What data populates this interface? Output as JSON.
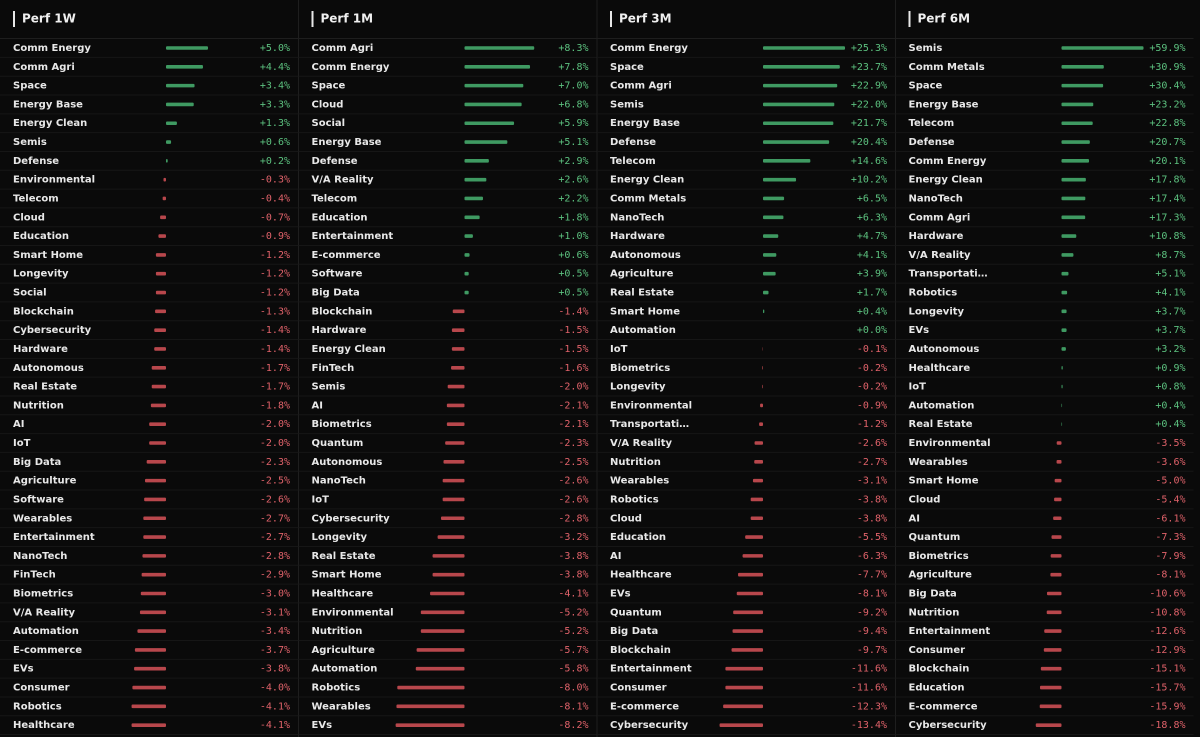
{
  "panels": [
    {
      "title": "Perf 1W",
      "names": [
        "Comm Energy",
        "Comm Agri",
        "Space",
        "Energy Base",
        "Energy Clean",
        "Semis",
        "Defense",
        "Environmental",
        "Telecom",
        "Cloud",
        "Education",
        "Smart Home",
        "Longevity",
        "Social",
        "Blockchain",
        "Cybersecurity",
        "Hardware",
        "Autonomous",
        "Real Estate",
        "Nutrition",
        "AI",
        "IoT",
        "Big Data",
        "Agriculture",
        "Software",
        "Wearables",
        "Entertainment",
        "NanoTech",
        "FinTech",
        "Biometrics",
        "V/A Reality",
        "Automation",
        "E-commerce",
        "EVs",
        "Consumer",
        "Robotics",
        "Healthcare"
      ],
      "values": [
        5.0,
        4.4,
        3.4,
        3.3,
        1.3,
        0.6,
        0.2,
        -0.3,
        -0.4,
        -0.7,
        -0.9,
        -1.2,
        -1.2,
        -1.2,
        -1.3,
        -1.4,
        -1.4,
        -1.7,
        -1.7,
        -1.8,
        -2.0,
        -2.0,
        -2.3,
        -2.5,
        -2.6,
        -2.7,
        -2.7,
        -2.8,
        -2.9,
        -3.0,
        -3.1,
        -3.4,
        -3.7,
        -3.8,
        -4.0,
        -4.1,
        -4.1
      ],
      "value_labels": [
        "+5.0%",
        "+4.4%",
        "+3.4%",
        "+3.3%",
        "+1.3%",
        "+0.6%",
        "+0.2%",
        "-0.3%",
        "-0.4%",
        "-0.7%",
        "-0.9%",
        "-1.2%",
        "-1.2%",
        "-1.2%",
        "-1.3%",
        "-1.4%",
        "-1.4%",
        "-1.7%",
        "-1.7%",
        "-1.8%",
        "-2.0%",
        "-2.0%",
        "-2.3%",
        "-2.5%",
        "-2.6%",
        "-2.7%",
        "-2.7%",
        "-2.8%",
        "-2.9%",
        "-3.0%",
        "-3.1%",
        "-3.4%",
        "-3.7%",
        "-3.8%",
        "-4.0%",
        "-4.1%",
        "-4.1%"
      ]
    },
    {
      "title": "Perf 1M",
      "names": [
        "Comm Agri",
        "Comm Energy",
        "Space",
        "Cloud",
        "Social",
        "Energy Base",
        "Defense",
        "V/A Reality",
        "Telecom",
        "Education",
        "Entertainment",
        "E-commerce",
        "Software",
        "Big Data",
        "Blockchain",
        "Hardware",
        "Energy Clean",
        "FinTech",
        "Semis",
        "AI",
        "Biometrics",
        "Quantum",
        "Autonomous",
        "NanoTech",
        "IoT",
        "Cybersecurity",
        "Longevity",
        "Real Estate",
        "Smart Home",
        "Healthcare",
        "Environmental",
        "Nutrition",
        "Agriculture",
        "Automation",
        "Robotics",
        "Wearables",
        "EVs"
      ],
      "values": [
        8.3,
        7.8,
        7.0,
        6.8,
        5.9,
        5.1,
        2.9,
        2.6,
        2.2,
        1.8,
        1.0,
        0.6,
        0.5,
        0.5,
        -1.4,
        -1.5,
        -1.5,
        -1.6,
        -2.0,
        -2.1,
        -2.1,
        -2.3,
        -2.5,
        -2.6,
        -2.6,
        -2.8,
        -3.2,
        -3.8,
        -3.8,
        -4.1,
        -5.2,
        -5.2,
        -5.7,
        -5.8,
        -8.0,
        -8.1,
        -8.2
      ],
      "value_labels": [
        "+8.3%",
        "+7.8%",
        "+7.0%",
        "+6.8%",
        "+5.9%",
        "+5.1%",
        "+2.9%",
        "+2.6%",
        "+2.2%",
        "+1.8%",
        "+1.0%",
        "+0.6%",
        "+0.5%",
        "+0.5%",
        "-1.4%",
        "-1.5%",
        "-1.5%",
        "-1.6%",
        "-2.0%",
        "-2.1%",
        "-2.1%",
        "-2.3%",
        "-2.5%",
        "-2.6%",
        "-2.6%",
        "-2.8%",
        "-3.2%",
        "-3.8%",
        "-3.8%",
        "-4.1%",
        "-5.2%",
        "-5.2%",
        "-5.7%",
        "-5.8%",
        "-8.0%",
        "-8.1%",
        "-8.2%"
      ]
    },
    {
      "title": "Perf 3M",
      "names": [
        "Comm Energy",
        "Space",
        "Comm Agri",
        "Semis",
        "Energy Base",
        "Defense",
        "Telecom",
        "Energy Clean",
        "Comm Metals",
        "NanoTech",
        "Hardware",
        "Autonomous",
        "Agriculture",
        "Real Estate",
        "Smart Home",
        "Automation",
        "IoT",
        "Biometrics",
        "Longevity",
        "Environmental",
        "Transportati…",
        "V/A Reality",
        "Nutrition",
        "Wearables",
        "Robotics",
        "Cloud",
        "Education",
        "AI",
        "Healthcare",
        "EVs",
        "Quantum",
        "Big Data",
        "Blockchain",
        "Entertainment",
        "Consumer",
        "E-commerce",
        "Cybersecurity"
      ],
      "values": [
        25.3,
        23.7,
        22.9,
        22.0,
        21.7,
        20.4,
        14.6,
        10.2,
        6.5,
        6.3,
        4.7,
        4.1,
        3.9,
        1.7,
        0.4,
        0.0,
        -0.1,
        -0.2,
        -0.2,
        -0.9,
        -1.2,
        -2.6,
        -2.7,
        -3.1,
        -3.8,
        -3.8,
        -5.5,
        -6.3,
        -7.7,
        -8.1,
        -9.2,
        -9.4,
        -9.7,
        -11.6,
        -11.6,
        -12.3,
        -13.4
      ],
      "value_labels": [
        "+25.3%",
        "+23.7%",
        "+22.9%",
        "+22.0%",
        "+21.7%",
        "+20.4%",
        "+14.6%",
        "+10.2%",
        "+6.5%",
        "+6.3%",
        "+4.7%",
        "+4.1%",
        "+3.9%",
        "+1.7%",
        "+0.4%",
        "+0.0%",
        "-0.1%",
        "-0.2%",
        "-0.2%",
        "-0.9%",
        "-1.2%",
        "-2.6%",
        "-2.7%",
        "-3.1%",
        "-3.8%",
        "-3.8%",
        "-5.5%",
        "-6.3%",
        "-7.7%",
        "-8.1%",
        "-9.2%",
        "-9.4%",
        "-9.7%",
        "-11.6%",
        "-11.6%",
        "-12.3%",
        "-13.4%"
      ]
    },
    {
      "title": "Perf 6M",
      "names": [
        "Semis",
        "Comm Metals",
        "Space",
        "Energy Base",
        "Telecom",
        "Defense",
        "Comm Energy",
        "Energy Clean",
        "NanoTech",
        "Comm Agri",
        "Hardware",
        "V/A Reality",
        "Transportati…",
        "Robotics",
        "Longevity",
        "EVs",
        "Autonomous",
        "Healthcare",
        "IoT",
        "Automation",
        "Real Estate",
        "Environmental",
        "Wearables",
        "Smart Home",
        "Cloud",
        "AI",
        "Quantum",
        "Biometrics",
        "Agriculture",
        "Big Data",
        "Nutrition",
        "Entertainment",
        "Consumer",
        "Blockchain",
        "Education",
        "E-commerce",
        "Cybersecurity"
      ],
      "values": [
        59.9,
        30.9,
        30.4,
        23.2,
        22.8,
        20.7,
        20.1,
        17.8,
        17.4,
        17.3,
        10.8,
        8.7,
        5.1,
        4.1,
        3.7,
        3.7,
        3.2,
        0.9,
        0.8,
        0.4,
        0.4,
        -3.5,
        -3.6,
        -5.0,
        -5.4,
        -6.1,
        -7.3,
        -7.9,
        -8.1,
        -10.6,
        -10.8,
        -12.6,
        -12.9,
        -15.1,
        -15.7,
        -15.9,
        -18.8
      ],
      "value_labels": [
        "+59.9%",
        "+30.9%",
        "+30.4%",
        "+23.2%",
        "+22.8%",
        "+20.7%",
        "+20.1%",
        "+17.8%",
        "+17.4%",
        "+17.3%",
        "+10.8%",
        "+8.7%",
        "+5.1%",
        "+4.1%",
        "+3.7%",
        "+3.7%",
        "+3.2%",
        "+0.9%",
        "+0.8%",
        "+0.4%",
        "+0.4%",
        "-3.5%",
        "-3.6%",
        "-5.0%",
        "-5.4%",
        "-6.1%",
        "-7.3%",
        "-7.9%",
        "-8.1%",
        "-10.6%",
        "-10.8%",
        "-12.6%",
        "-12.9%",
        "-15.1%",
        "-15.7%",
        "-15.9%",
        "-18.8%"
      ]
    }
  ]
}
